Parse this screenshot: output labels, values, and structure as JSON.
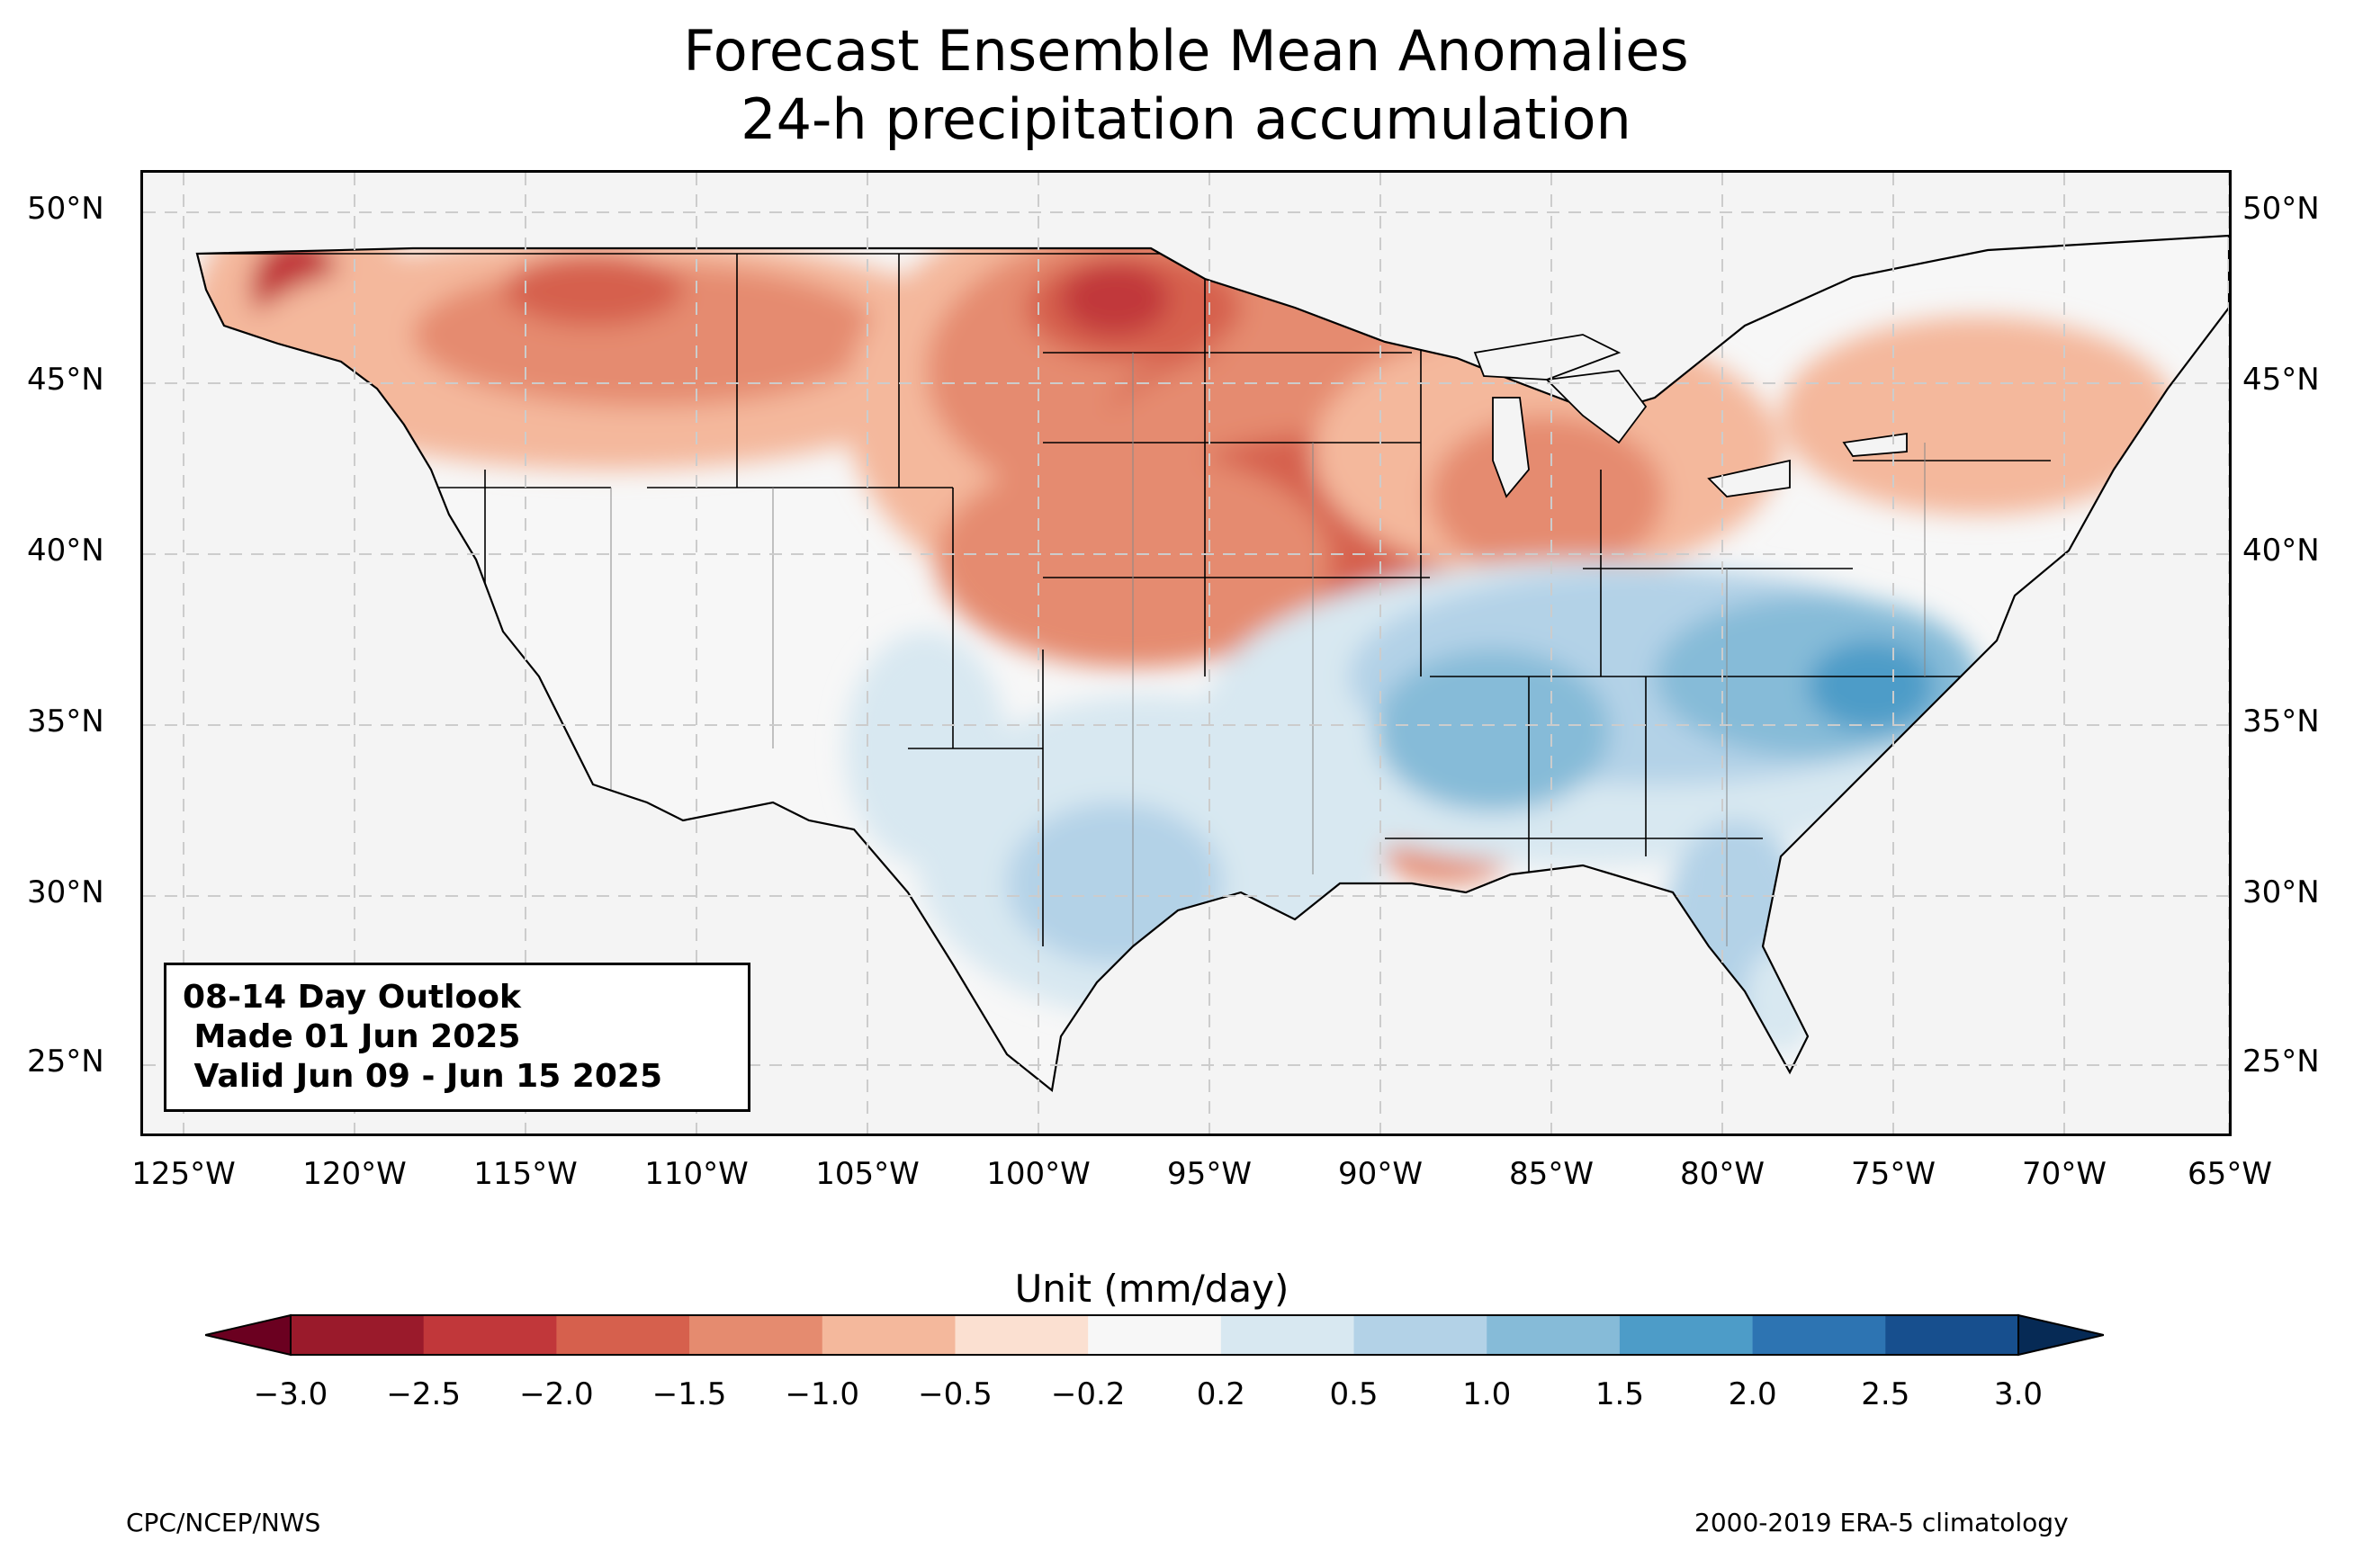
{
  "title": {
    "line1": "Forecast Ensemble Mean Anomalies",
    "line2": "24-h precipitation accumulation"
  },
  "map": {
    "lat_ticks": [
      "50°N",
      "45°N",
      "40°N",
      "35°N",
      "30°N",
      "25°N"
    ],
    "lon_ticks": [
      "125°W",
      "120°W",
      "115°W",
      "110°W",
      "105°W",
      "100°W",
      "95°W",
      "90°W",
      "85°W",
      "80°W",
      "75°W",
      "70°W",
      "65°W"
    ],
    "region": "Contiguous United States",
    "patterns": [
      {
        "area": "Northern Plains / Upper Midwest",
        "anomaly": "-2.0 to -2.5 (drier)"
      },
      {
        "area": "Central Plains / Missouri-Iowa-Illinois",
        "anomaly": "-1.5 to -2.5 (drier)"
      },
      {
        "area": "Pacific Northwest / Northern Rockies",
        "anomaly": "-1.0 to -2.5 (drier)"
      },
      {
        "area": "Southeast / Tennessee Valley / Carolinas",
        "anomaly": "+0.5 to +2.0 (wetter)"
      },
      {
        "area": "Southern Plains / Texas",
        "anomaly": "+0.2 to +1.0 (wetter)"
      },
      {
        "area": "Great Basin / Southwest",
        "anomaly": "-0.2 to 0.2 (near normal)"
      }
    ]
  },
  "infobox": {
    "line1": "08-14 Day Outlook",
    "line2": " Made 01 Jun 2025",
    "line3": " Valid Jun 09 - Jun 15 2025"
  },
  "colorbar": {
    "title": "Unit (mm/day)",
    "labels": [
      "−3.0",
      "−2.5",
      "−2.0",
      "−1.5",
      "−1.0",
      "−0.5",
      "−0.2",
      "0.2",
      "0.5",
      "1.0",
      "1.5",
      "2.0",
      "2.5",
      "3.0"
    ],
    "colors": [
      "#9a1a2b",
      "#c1373a",
      "#d6604d",
      "#e58b6f",
      "#f4b89c",
      "#fbe0d1",
      "#f7f7f7",
      "#d8e8f1",
      "#b3d2e7",
      "#86bbd8",
      "#4d9cc8",
      "#2d74b2",
      "#174f8e"
    ],
    "under_color": "#6b0020",
    "over_color": "#062a55"
  },
  "footer": {
    "left": "CPC/NCEP/NWS",
    "right": "2000-2019 ERA-5 climatology"
  }
}
